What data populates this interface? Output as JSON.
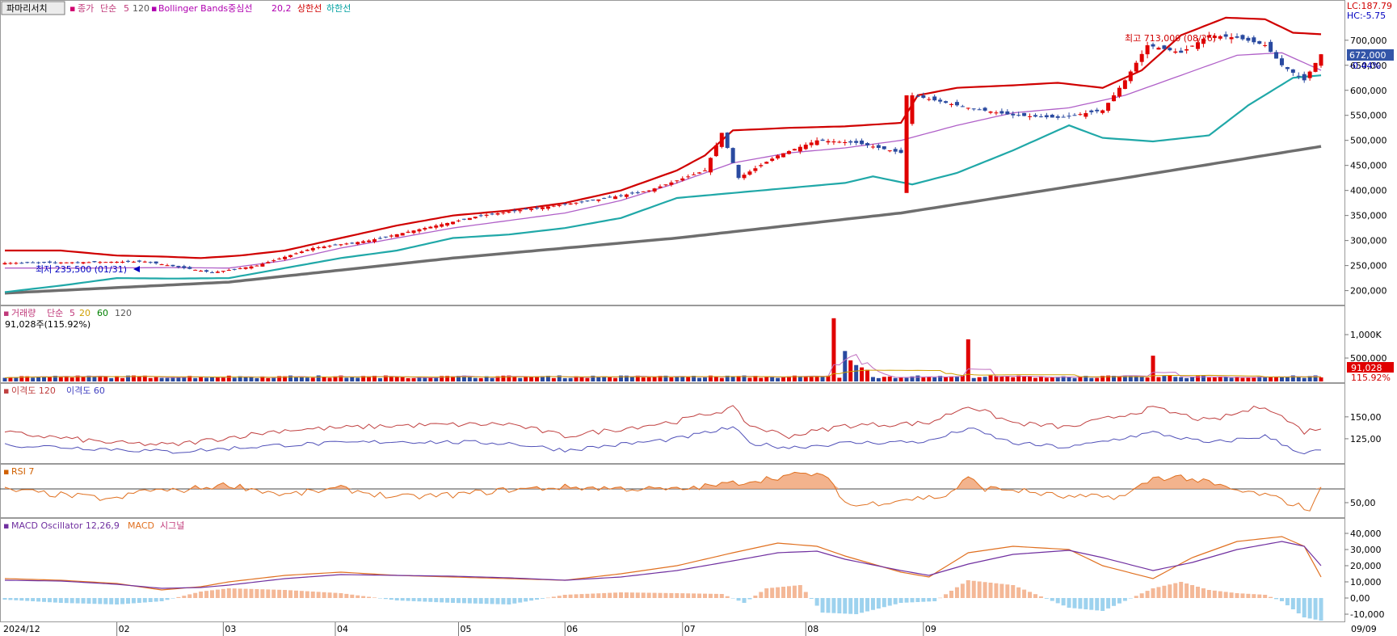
{
  "chart_data": {
    "type": "stock_chart",
    "toolbar_button": "파마리서치",
    "x_axis_labels": [
      "2024/12",
      "02",
      "03",
      "04",
      "05",
      "06",
      "07",
      "08",
      "09",
      "09/09"
    ],
    "price_panel": {
      "legend": {
        "close": "종가",
        "ma_label": "단순",
        "ma_periods": "5",
        "ma_long": "120",
        "bb_label": "Bollinger Bands중심선",
        "bb_params": "20,2",
        "bb_upper": "상한선",
        "bb_lower": "하한선"
      },
      "corner_lc": "LC:187.79",
      "corner_hc": "HC:-5.75",
      "y_ticks": [
        "700,000",
        "650,000",
        "600,000",
        "550,000",
        "500,000",
        "450,000",
        "400,000",
        "350,000",
        "300,000",
        "250,000",
        "200,000"
      ],
      "y_range": [
        180000,
        740000
      ],
      "current_price": "672,000",
      "current_change": "-0.44%",
      "high_annotation": "최고 713,000 (08/26)",
      "low_annotation": "최저 235,500 (01/31)",
      "close_path": [
        [
          0,
          255000
        ],
        [
          25,
          258000
        ],
        [
          37,
          236000
        ],
        [
          45,
          250000
        ],
        [
          55,
          285000
        ],
        [
          65,
          300000
        ],
        [
          75,
          325000
        ],
        [
          85,
          350000
        ],
        [
          95,
          365000
        ],
        [
          105,
          380000
        ],
        [
          115,
          400000
        ],
        [
          125,
          440000
        ],
        [
          128,
          515000
        ],
        [
          131,
          425000
        ],
        [
          138,
          470000
        ],
        [
          145,
          500000
        ],
        [
          152,
          495000
        ],
        [
          160,
          475000
        ],
        [
          162,
          590000
        ],
        [
          168,
          575000
        ],
        [
          172,
          565000
        ],
        [
          180,
          550000
        ],
        [
          188,
          545000
        ],
        [
          196,
          560000
        ],
        [
          200,
          620000
        ],
        [
          204,
          690000
        ],
        [
          210,
          675000
        ],
        [
          215,
          710000
        ],
        [
          220,
          705000
        ],
        [
          225,
          690000
        ],
        [
          228,
          650000
        ],
        [
          232,
          620000
        ],
        [
          235,
          672000
        ]
      ],
      "bb_upper_path": [
        [
          0,
          280000
        ],
        [
          10,
          280000
        ],
        [
          20,
          270000
        ],
        [
          28,
          268000
        ],
        [
          35,
          265000
        ],
        [
          42,
          270000
        ],
        [
          50,
          280000
        ],
        [
          60,
          305000
        ],
        [
          70,
          330000
        ],
        [
          80,
          350000
        ],
        [
          90,
          360000
        ],
        [
          100,
          375000
        ],
        [
          110,
          400000
        ],
        [
          120,
          440000
        ],
        [
          125,
          470000
        ],
        [
          130,
          520000
        ],
        [
          140,
          525000
        ],
        [
          150,
          528000
        ],
        [
          160,
          535000
        ],
        [
          163,
          590000
        ],
        [
          170,
          605000
        ],
        [
          180,
          610000
        ],
        [
          188,
          615000
        ],
        [
          196,
          605000
        ],
        [
          203,
          640000
        ],
        [
          210,
          710000
        ],
        [
          218,
          745000
        ],
        [
          225,
          742000
        ],
        [
          230,
          715000
        ],
        [
          235,
          712000
        ]
      ],
      "bb_mid_path": [
        [
          0,
          245000
        ],
        [
          15,
          245000
        ],
        [
          30,
          246000
        ],
        [
          40,
          245000
        ],
        [
          50,
          260000
        ],
        [
          60,
          285000
        ],
        [
          70,
          305000
        ],
        [
          80,
          325000
        ],
        [
          90,
          340000
        ],
        [
          100,
          355000
        ],
        [
          110,
          380000
        ],
        [
          120,
          415000
        ],
        [
          130,
          455000
        ],
        [
          140,
          475000
        ],
        [
          150,
          485000
        ],
        [
          160,
          500000
        ],
        [
          170,
          530000
        ],
        [
          180,
          555000
        ],
        [
          190,
          565000
        ],
        [
          200,
          590000
        ],
        [
          210,
          630000
        ],
        [
          220,
          670000
        ],
        [
          228,
          675000
        ],
        [
          235,
          640000
        ]
      ],
      "bb_lower_path": [
        [
          0,
          197000
        ],
        [
          10,
          210000
        ],
        [
          20,
          225000
        ],
        [
          30,
          224000
        ],
        [
          40,
          225000
        ],
        [
          50,
          245000
        ],
        [
          60,
          265000
        ],
        [
          70,
          280000
        ],
        [
          80,
          305000
        ],
        [
          90,
          312000
        ],
        [
          100,
          325000
        ],
        [
          110,
          345000
        ],
        [
          120,
          385000
        ],
        [
          130,
          395000
        ],
        [
          140,
          405000
        ],
        [
          150,
          415000
        ],
        [
          155,
          428000
        ],
        [
          162,
          412000
        ],
        [
          170,
          435000
        ],
        [
          180,
          480000
        ],
        [
          190,
          530000
        ],
        [
          196,
          505000
        ],
        [
          205,
          498000
        ],
        [
          215,
          510000
        ],
        [
          222,
          570000
        ],
        [
          230,
          625000
        ],
        [
          235,
          630000
        ]
      ],
      "ma120_path": [
        [
          0,
          195000
        ],
        [
          40,
          217000
        ],
        [
          80,
          265000
        ],
        [
          120,
          305000
        ],
        [
          160,
          355000
        ],
        [
          200,
          425000
        ],
        [
          235,
          488000
        ]
      ]
    },
    "volume_panel": {
      "legend": {
        "title": "거래량",
        "ma_label": "단순",
        "p5": "5",
        "p20": "20",
        "p60": "60",
        "p120": "120"
      },
      "value_text": "91,028주(115.92%)",
      "y_ticks": [
        "1,000K",
        "500,000"
      ],
      "current_volume": "91,028",
      "current_ratio": "115.92%",
      "spikes": [
        [
          18,
          40000
        ],
        [
          33,
          35000
        ],
        [
          148,
          1350000
        ],
        [
          150,
          650000
        ],
        [
          151,
          450000
        ],
        [
          152,
          350000
        ],
        [
          153,
          300000
        ],
        [
          154,
          250000
        ],
        [
          172,
          900000
        ],
        [
          205,
          550000
        ]
      ]
    },
    "disparity_panel": {
      "legend": {
        "d120": "이격도 120",
        "d60": "이격도 60"
      },
      "y_ticks": [
        "150,00",
        "125,00"
      ],
      "d120_path": [
        [
          0,
          132
        ],
        [
          20,
          120
        ],
        [
          30,
          118
        ],
        [
          50,
          135
        ],
        [
          70,
          140
        ],
        [
          90,
          142
        ],
        [
          100,
          128
        ],
        [
          120,
          145
        ],
        [
          130,
          160
        ],
        [
          133,
          140
        ],
        [
          140,
          128
        ],
        [
          150,
          140
        ],
        [
          165,
          143
        ],
        [
          172,
          163
        ],
        [
          180,
          143
        ],
        [
          190,
          138
        ],
        [
          205,
          160
        ],
        [
          215,
          145
        ],
        [
          225,
          163
        ],
        [
          232,
          133
        ],
        [
          235,
          138
        ]
      ],
      "d60_path": [
        [
          0,
          118
        ],
        [
          20,
          113
        ],
        [
          30,
          110
        ],
        [
          50,
          118
        ],
        [
          70,
          122
        ],
        [
          90,
          120
        ],
        [
          100,
          112
        ],
        [
          120,
          125
        ],
        [
          130,
          138
        ],
        [
          133,
          120
        ],
        [
          140,
          115
        ],
        [
          150,
          120
        ],
        [
          165,
          122
        ],
        [
          172,
          137
        ],
        [
          180,
          120
        ],
        [
          190,
          115
        ],
        [
          205,
          132
        ],
        [
          215,
          120
        ],
        [
          225,
          128
        ],
        [
          232,
          108
        ],
        [
          235,
          112
        ]
      ]
    },
    "rsi_panel": {
      "legend": "RSI 7",
      "y_ticks": [
        "50,00"
      ],
      "rsi_path": [
        [
          0,
          70
        ],
        [
          10,
          62
        ],
        [
          20,
          55
        ],
        [
          25,
          70
        ],
        [
          30,
          68
        ],
        [
          40,
          78
        ],
        [
          50,
          62
        ],
        [
          60,
          72
        ],
        [
          70,
          58
        ],
        [
          80,
          62
        ],
        [
          90,
          70
        ],
        [
          100,
          74
        ],
        [
          110,
          72
        ],
        [
          120,
          70
        ],
        [
          130,
          80
        ],
        [
          140,
          92
        ],
        [
          145,
          95
        ],
        [
          148,
          78
        ],
        [
          150,
          50
        ],
        [
          152,
          45
        ],
        [
          160,
          55
        ],
        [
          168,
          60
        ],
        [
          172,
          88
        ],
        [
          175,
          72
        ],
        [
          180,
          70
        ],
        [
          190,
          58
        ],
        [
          200,
          60
        ],
        [
          205,
          88
        ],
        [
          210,
          90
        ],
        [
          215,
          80
        ],
        [
          220,
          68
        ],
        [
          225,
          62
        ],
        [
          230,
          48
        ],
        [
          233,
          40
        ],
        [
          235,
          70
        ]
      ]
    },
    "macd_panel": {
      "legend": {
        "osc": "MACD Oscillator 12,26,9",
        "macd": "MACD",
        "signal": "시그널"
      },
      "y_ticks": [
        "40,000",
        "30,000",
        "20,000",
        "10,000",
        "0,00",
        "-10,000"
      ],
      "y_range": [
        -14000,
        46000
      ],
      "macd_path": [
        [
          0,
          12000
        ],
        [
          10,
          11000
        ],
        [
          20,
          9000
        ],
        [
          28,
          5000
        ],
        [
          35,
          7000
        ],
        [
          40,
          10000
        ],
        [
          50,
          14000
        ],
        [
          60,
          16000
        ],
        [
          70,
          14000
        ],
        [
          80,
          13000
        ],
        [
          90,
          12000
        ],
        [
          100,
          11000
        ],
        [
          110,
          15000
        ],
        [
          120,
          20000
        ],
        [
          130,
          28000
        ],
        [
          138,
          34000
        ],
        [
          145,
          32000
        ],
        [
          150,
          26000
        ],
        [
          160,
          16000
        ],
        [
          165,
          13000
        ],
        [
          172,
          28000
        ],
        [
          180,
          32000
        ],
        [
          190,
          30000
        ],
        [
          196,
          20000
        ],
        [
          205,
          12000
        ],
        [
          212,
          25000
        ],
        [
          220,
          35000
        ],
        [
          228,
          38000
        ],
        [
          232,
          32000
        ],
        [
          235,
          13000
        ]
      ],
      "signal_path": [
        [
          0,
          11000
        ],
        [
          10,
          10500
        ],
        [
          20,
          8500
        ],
        [
          28,
          6000
        ],
        [
          35,
          6500
        ],
        [
          40,
          8000
        ],
        [
          50,
          12000
        ],
        [
          60,
          14500
        ],
        [
          70,
          14000
        ],
        [
          80,
          13500
        ],
        [
          90,
          12500
        ],
        [
          100,
          11000
        ],
        [
          110,
          13000
        ],
        [
          120,
          17000
        ],
        [
          130,
          23000
        ],
        [
          138,
          28000
        ],
        [
          145,
          29000
        ],
        [
          150,
          24000
        ],
        [
          160,
          17000
        ],
        [
          165,
          14000
        ],
        [
          172,
          21000
        ],
        [
          180,
          27000
        ],
        [
          190,
          29500
        ],
        [
          196,
          25000
        ],
        [
          205,
          17000
        ],
        [
          212,
          22000
        ],
        [
          220,
          30000
        ],
        [
          228,
          35000
        ],
        [
          232,
          32000
        ],
        [
          235,
          20000
        ]
      ],
      "osc_path": [
        [
          0,
          -1000
        ],
        [
          10,
          -3000
        ],
        [
          20,
          -4000
        ],
        [
          28,
          -2000
        ],
        [
          35,
          4000
        ],
        [
          40,
          6000
        ],
        [
          50,
          5000
        ],
        [
          60,
          3000
        ],
        [
          70,
          -1500
        ],
        [
          80,
          -3000
        ],
        [
          90,
          -4000
        ],
        [
          100,
          2000
        ],
        [
          110,
          3500
        ],
        [
          120,
          3000
        ],
        [
          128,
          2500
        ],
        [
          132,
          -3000
        ],
        [
          136,
          6000
        ],
        [
          142,
          8000
        ],
        [
          146,
          -9000
        ],
        [
          152,
          -10000
        ],
        [
          160,
          -3000
        ],
        [
          166,
          -2000
        ],
        [
          172,
          11000
        ],
        [
          180,
          8000
        ],
        [
          185,
          1000
        ],
        [
          190,
          -6000
        ],
        [
          196,
          -8000
        ],
        [
          205,
          6000
        ],
        [
          210,
          10000
        ],
        [
          215,
          5000
        ],
        [
          220,
          3000
        ],
        [
          225,
          2000
        ],
        [
          228,
          -2000
        ],
        [
          232,
          -12000
        ],
        [
          235,
          -14000
        ]
      ]
    }
  }
}
